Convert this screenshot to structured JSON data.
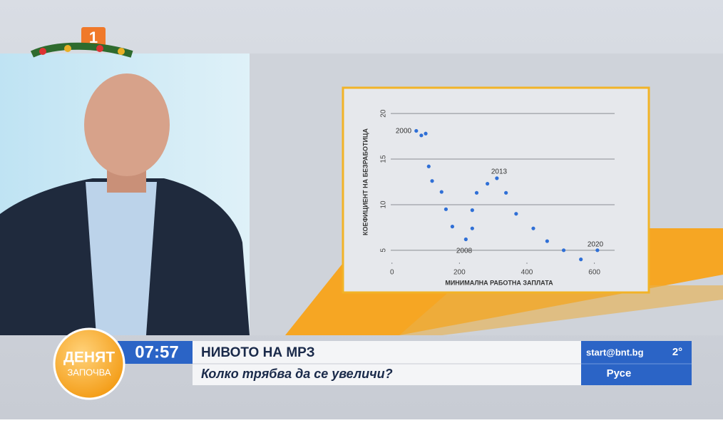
{
  "logo": "1",
  "show": {
    "title": "ДЕНЯТ",
    "subtitle": "ЗАПОЧВА"
  },
  "ticker": {
    "time": "07:57",
    "headline": "НИВОТО НА МРЗ",
    "subheadline": "Колко трябва да се увеличи?",
    "email": "start@bnt.bg",
    "temperature": "2°",
    "city": "Русе"
  },
  "chart_data": {
    "type": "scatter",
    "x_label": "МИНИМАЛНА РАБОТНА ЗАПЛАТА",
    "y_label": "КОЕФИЦИЕНТ НА БЕЗРАБОТИЦА",
    "x": [
      72,
      87,
      100,
      109,
      119,
      147,
      160,
      179,
      219,
      238,
      238,
      251,
      283,
      311,
      338,
      368,
      419,
      460,
      509,
      560,
      609
    ],
    "values": [
      18.1,
      17.6,
      17.8,
      14.2,
      12.6,
      11.4,
      9.5,
      7.6,
      6.2,
      7.4,
      9.4,
      11.3,
      12.3,
      12.9,
      11.3,
      9.0,
      7.4,
      6.0,
      5.0,
      4.0,
      5.0
    ],
    "color": "#2f6fd6",
    "annotations": [
      "2000",
      "2008",
      "2013",
      "2020"
    ],
    "xlim": [
      -10,
      660
    ],
    "xticks": [
      0,
      200,
      400,
      600
    ],
    "ylim": [
      3.5,
      21.5
    ],
    "yticks": [
      5,
      10,
      15,
      20
    ],
    "grid": true
  }
}
